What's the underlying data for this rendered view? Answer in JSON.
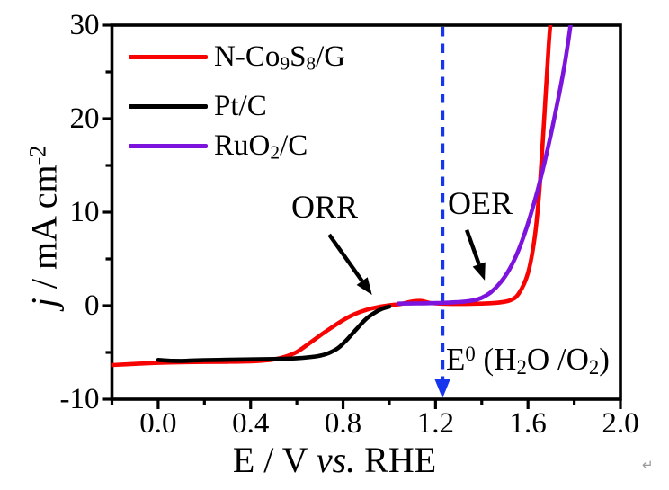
{
  "chart_data": {
    "type": "line",
    "title": "",
    "xlabel_text": "E / V vs. RHE",
    "xlabel_parts": [
      [
        "t",
        "E / V "
      ],
      [
        "i",
        "vs."
      ],
      [
        "t",
        " RHE"
      ]
    ],
    "ylabel_text": "j / mA cm-2",
    "ylabel_parts": [
      [
        "i",
        "j"
      ],
      [
        "t",
        " / mA cm"
      ],
      [
        "sup",
        "-2"
      ]
    ],
    "xlim": [
      -0.2,
      2.0
    ],
    "ylim": [
      -10,
      30
    ],
    "x_major_ticks": [
      0.0,
      0.4,
      0.8,
      1.2,
      1.6,
      2.0
    ],
    "x_major_tick_labels": [
      "0.0",
      "0.4",
      "0.8",
      "1.2",
      "1.6",
      "2.0"
    ],
    "x_minor_ticks": [
      -0.2,
      0.2,
      0.6,
      1.0,
      1.4,
      1.8
    ],
    "y_major_ticks": [
      -10,
      0,
      10,
      20,
      30
    ],
    "y_major_tick_labels": [
      "-10",
      "0",
      "10",
      "20",
      "30"
    ],
    "y_minor_ticks": [
      -5,
      5,
      15,
      25
    ],
    "grid": false,
    "frame": true,
    "axis_color": "#000000",
    "background_color": "#ffffff",
    "legend_position": "top-left-inside",
    "series": [
      {
        "name": "N-Co9S8/G",
        "label_parts": [
          [
            "t",
            "N-Co"
          ],
          [
            "sub",
            "9"
          ],
          [
            "t",
            "S"
          ],
          [
            "sub",
            "8"
          ],
          [
            "t",
            "/G"
          ]
        ],
        "color": "#f60302",
        "points": [
          [
            -0.2,
            -6.35
          ],
          [
            -0.1,
            -6.22
          ],
          [
            0.0,
            -6.12
          ],
          [
            0.1,
            -6.05
          ],
          [
            0.2,
            -6.02
          ],
          [
            0.3,
            -6.0
          ],
          [
            0.4,
            -5.95
          ],
          [
            0.45,
            -5.88
          ],
          [
            0.5,
            -5.75
          ],
          [
            0.55,
            -5.45
          ],
          [
            0.6,
            -4.95
          ],
          [
            0.65,
            -4.1
          ],
          [
            0.7,
            -3.2
          ],
          [
            0.75,
            -2.35
          ],
          [
            0.8,
            -1.55
          ],
          [
            0.85,
            -0.9
          ],
          [
            0.9,
            -0.45
          ],
          [
            0.95,
            -0.15
          ],
          [
            1.0,
            0.05
          ],
          [
            1.05,
            0.18
          ],
          [
            1.1,
            0.45
          ],
          [
            1.14,
            0.5
          ],
          [
            1.18,
            0.28
          ],
          [
            1.25,
            0.2
          ],
          [
            1.35,
            0.2
          ],
          [
            1.45,
            0.28
          ],
          [
            1.52,
            0.55
          ],
          [
            1.56,
            1.3
          ],
          [
            1.6,
            3.5
          ],
          [
            1.63,
            7.5
          ],
          [
            1.65,
            12.5
          ],
          [
            1.67,
            20.0
          ],
          [
            1.69,
            28.0
          ],
          [
            1.7,
            31.0
          ]
        ]
      },
      {
        "name": "Pt/C",
        "label_parts": [
          [
            "t",
            "Pt/C"
          ]
        ],
        "color": "#000000",
        "points": [
          [
            0.0,
            -5.8
          ],
          [
            0.05,
            -5.88
          ],
          [
            0.1,
            -5.9
          ],
          [
            0.15,
            -5.86
          ],
          [
            0.2,
            -5.82
          ],
          [
            0.3,
            -5.78
          ],
          [
            0.4,
            -5.74
          ],
          [
            0.5,
            -5.7
          ],
          [
            0.6,
            -5.62
          ],
          [
            0.65,
            -5.52
          ],
          [
            0.7,
            -5.35
          ],
          [
            0.74,
            -5.05
          ],
          [
            0.78,
            -4.5
          ],
          [
            0.82,
            -3.55
          ],
          [
            0.86,
            -2.45
          ],
          [
            0.9,
            -1.4
          ],
          [
            0.94,
            -0.7
          ],
          [
            0.97,
            -0.32
          ],
          [
            1.0,
            -0.1
          ]
        ]
      },
      {
        "name": "RuO2/C",
        "label_parts": [
          [
            "t",
            "RuO"
          ],
          [
            "sub",
            "2"
          ],
          [
            "t",
            "/C"
          ]
        ],
        "color": "#7d14dd",
        "points": [
          [
            1.04,
            0.22
          ],
          [
            1.12,
            0.24
          ],
          [
            1.2,
            0.28
          ],
          [
            1.3,
            0.38
          ],
          [
            1.36,
            0.55
          ],
          [
            1.4,
            0.85
          ],
          [
            1.44,
            1.45
          ],
          [
            1.48,
            2.45
          ],
          [
            1.52,
            3.9
          ],
          [
            1.56,
            6.0
          ],
          [
            1.6,
            8.8
          ],
          [
            1.64,
            12.2
          ],
          [
            1.68,
            16.2
          ],
          [
            1.72,
            20.8
          ],
          [
            1.76,
            26.0
          ],
          [
            1.79,
            31.0
          ]
        ]
      }
    ],
    "reference_line": {
      "x": 1.23,
      "style": "dashed",
      "color": "#1636ee",
      "arrow": "down",
      "label_text": "E0 (H2O /O2)",
      "label_parts": [
        [
          "t",
          "E"
        ],
        [
          "sup",
          "0"
        ],
        [
          "t",
          " (H"
        ],
        [
          "sub",
          "2"
        ],
        [
          "t",
          "O /O"
        ],
        [
          "sub",
          "2"
        ],
        [
          "t",
          ")"
        ]
      ]
    },
    "annotations": [
      {
        "text": "ORR",
        "arrow": {
          "from": [
            0.74,
            7.6
          ],
          "to": [
            0.925,
            1.15
          ]
        }
      },
      {
        "text": "OER",
        "arrow": {
          "from": [
            1.335,
            8.1
          ],
          "to": [
            1.413,
            2.7
          ]
        }
      }
    ]
  },
  "page": {
    "return_mark": "↵"
  }
}
